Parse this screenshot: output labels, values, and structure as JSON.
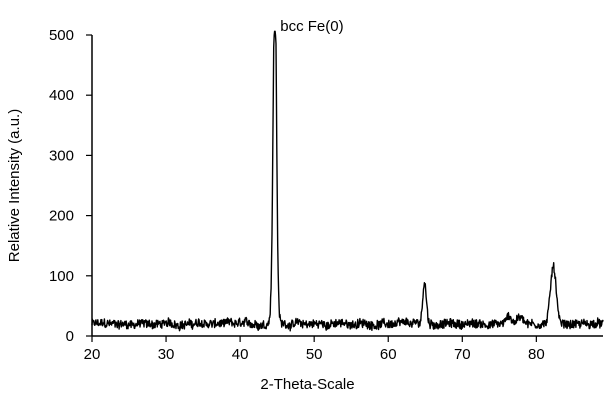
{
  "chart_data": {
    "type": "line",
    "xlabel": "2-Theta-Scale",
    "ylabel": "Relative Intensity (a.u.)",
    "xlim": [
      20,
      89
    ],
    "ylim": [
      0,
      500
    ],
    "x_ticks": [
      20,
      30,
      40,
      50,
      60,
      70,
      80
    ],
    "y_ticks": [
      0,
      100,
      200,
      300,
      400,
      500
    ],
    "grid": false,
    "line_color": "#000000",
    "annotations": [
      {
        "text": "bcc Fe(0)",
        "x": 44.7,
        "y": 500
      }
    ],
    "series": [
      {
        "baseline": 20,
        "noise": 7,
        "peaks": [
          {
            "x": 44.7,
            "height": 470,
            "width": 0.22
          },
          {
            "x": 44.62,
            "height": 110,
            "width": 0.3
          },
          {
            "x": 64.9,
            "height": 68,
            "width": 0.25
          },
          {
            "x": 82.3,
            "height": 98,
            "width": 0.38
          },
          {
            "x": 76.3,
            "height": 15,
            "width": 0.3
          },
          {
            "x": 77.9,
            "height": 12,
            "width": 0.5
          }
        ]
      }
    ]
  }
}
